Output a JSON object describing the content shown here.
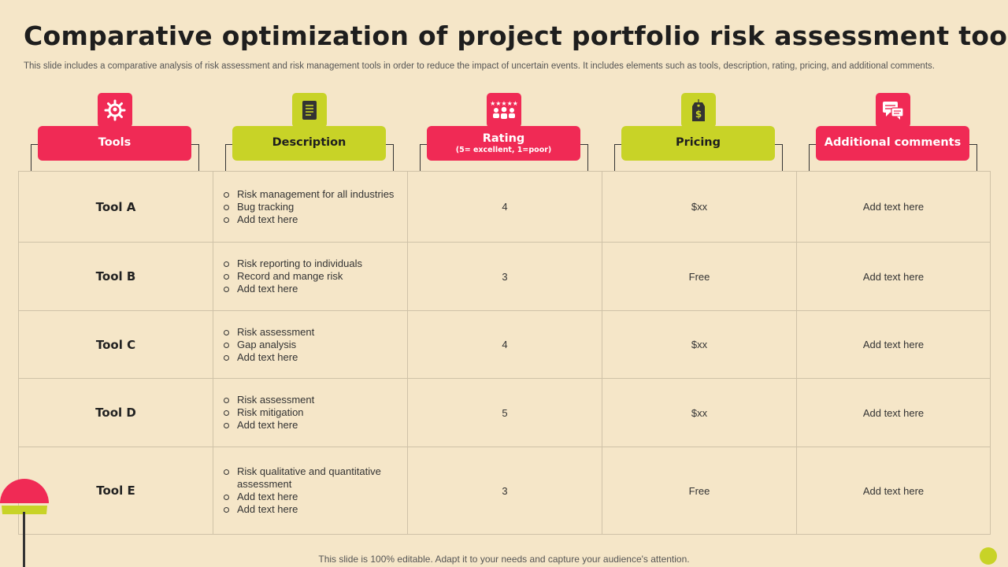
{
  "title": "Comparative optimization of project portfolio risk assessment tools",
  "subtitle": "This slide includes a comparative analysis of risk assessment and risk management tools in order to reduce the impact of uncertain events. It includes elements such as tools, description, rating, pricing, and additional comments.",
  "columns": [
    {
      "label": "Tools",
      "sub": "",
      "color": "#f02a55",
      "icon": "gear-people-icon"
    },
    {
      "label": "Description",
      "sub": "",
      "color": "#c8d327",
      "icon": "document-icon"
    },
    {
      "label": "Rating",
      "sub": "(5= excellent, 1=poor)",
      "color": "#f02a55",
      "icon": "rating-crowd-icon"
    },
    {
      "label": "Pricing",
      "sub": "",
      "color": "#c8d327",
      "icon": "price-tag-icon"
    },
    {
      "label": "Additional comments",
      "sub": "",
      "color": "#f02a55",
      "icon": "comments-icon"
    }
  ],
  "rows": [
    {
      "tool": "Tool A",
      "desc": [
        "Risk management for all industries",
        "Bug tracking",
        "Add text here"
      ],
      "rating": "4",
      "pricing": "$xx",
      "comment": "Add text here"
    },
    {
      "tool": "Tool B",
      "desc": [
        "Risk reporting to individuals",
        "Record and mange risk",
        "Add text here"
      ],
      "rating": "3",
      "pricing": "Free",
      "comment": "Add text here"
    },
    {
      "tool": "Tool C",
      "desc": [
        "Risk assessment",
        "Gap analysis",
        "Add text here"
      ],
      "rating": "4",
      "pricing": "$xx",
      "comment": "Add text here"
    },
    {
      "tool": "Tool D",
      "desc": [
        "Risk assessment",
        "Risk mitigation",
        "Add text here"
      ],
      "rating": "5",
      "pricing": "$xx",
      "comment": "Add text here"
    },
    {
      "tool": "Tool E",
      "desc": [
        "Risk qualitative and quantitative assessment",
        "Add text here",
        "Add text here"
      ],
      "rating": "3",
      "pricing": "Free",
      "comment": "Add text here"
    }
  ],
  "footer": "This slide is 100% editable. Adapt it to your needs and capture your audience's attention.",
  "colors": {
    "background": "#f5e6c8",
    "pink": "#f02a55",
    "lime": "#c8d327"
  }
}
